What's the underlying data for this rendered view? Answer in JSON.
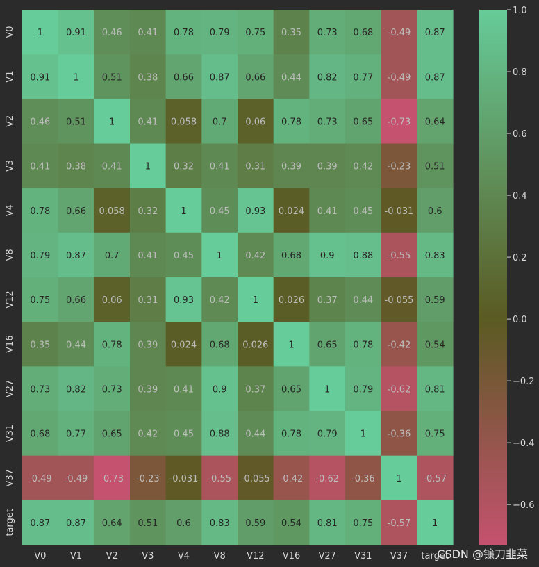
{
  "chart_data": {
    "type": "heatmap",
    "rows": [
      "V0",
      "V1",
      "V2",
      "V3",
      "V4",
      "V8",
      "V12",
      "V16",
      "V27",
      "V31",
      "V37",
      "target"
    ],
    "cols": [
      "V0",
      "V1",
      "V2",
      "V3",
      "V4",
      "V8",
      "V12",
      "V16",
      "V27",
      "V31",
      "V37",
      "target"
    ],
    "labels": [
      [
        "1",
        "0.91",
        "0.46",
        "0.41",
        "0.78",
        "0.79",
        "0.75",
        "0.35",
        "0.73",
        "0.68",
        "-0.49",
        "0.87"
      ],
      [
        "0.91",
        "1",
        "0.51",
        "0.38",
        "0.66",
        "0.87",
        "0.66",
        "0.44",
        "0.82",
        "0.77",
        "-0.49",
        "0.87"
      ],
      [
        "0.46",
        "0.51",
        "1",
        "0.41",
        "0.058",
        "0.7",
        "0.06",
        "0.78",
        "0.73",
        "0.65",
        "-0.73",
        "0.64"
      ],
      [
        "0.41",
        "0.38",
        "0.41",
        "1",
        "0.32",
        "0.41",
        "0.31",
        "0.39",
        "0.39",
        "0.42",
        "-0.23",
        "0.51"
      ],
      [
        "0.78",
        "0.66",
        "0.058",
        "0.32",
        "1",
        "0.45",
        "0.93",
        "0.024",
        "0.41",
        "0.45",
        "-0.031",
        "0.6"
      ],
      [
        "0.79",
        "0.87",
        "0.7",
        "0.41",
        "0.45",
        "1",
        "0.42",
        "0.68",
        "0.9",
        "0.88",
        "-0.55",
        "0.83"
      ],
      [
        "0.75",
        "0.66",
        "0.06",
        "0.31",
        "0.93",
        "0.42",
        "1",
        "0.026",
        "0.37",
        "0.44",
        "-0.055",
        "0.59"
      ],
      [
        "0.35",
        "0.44",
        "0.78",
        "0.39",
        "0.024",
        "0.68",
        "0.026",
        "1",
        "0.65",
        "0.78",
        "-0.42",
        "0.54"
      ],
      [
        "0.73",
        "0.82",
        "0.73",
        "0.39",
        "0.41",
        "0.9",
        "0.37",
        "0.65",
        "1",
        "0.79",
        "-0.62",
        "0.81"
      ],
      [
        "0.68",
        "0.77",
        "0.65",
        "0.42",
        "0.45",
        "0.88",
        "0.44",
        "0.78",
        "0.79",
        "1",
        "-0.36",
        "0.75"
      ],
      [
        "-0.49",
        "-0.49",
        "-0.73",
        "-0.23",
        "-0.031",
        "-0.55",
        "-0.055",
        "-0.42",
        "-0.62",
        "-0.36",
        "1",
        "-0.57"
      ],
      [
        "0.87",
        "0.87",
        "0.64",
        "0.51",
        "0.6",
        "0.83",
        "0.59",
        "0.54",
        "0.81",
        "0.75",
        "-0.57",
        "1"
      ]
    ],
    "colorbar": {
      "vmin": -0.73,
      "vmax": 1.0,
      "ticks": [
        -0.6,
        -0.4,
        -0.2,
        0.0,
        0.2,
        0.4,
        0.6,
        0.8,
        1.0
      ],
      "tick_labels": [
        "−0.6",
        "−0.4",
        "−0.2",
        "0.0",
        "0.2",
        "0.4",
        "0.6",
        "0.8",
        "1.0"
      ]
    },
    "colors": {
      "low": "#c5526f",
      "mid": "#5a5a22",
      "high": "#66cc99",
      "background": "#2b2b2b",
      "tick_text": "#d8d8d8"
    }
  },
  "watermark": "CSDN @镰刀韭菜"
}
